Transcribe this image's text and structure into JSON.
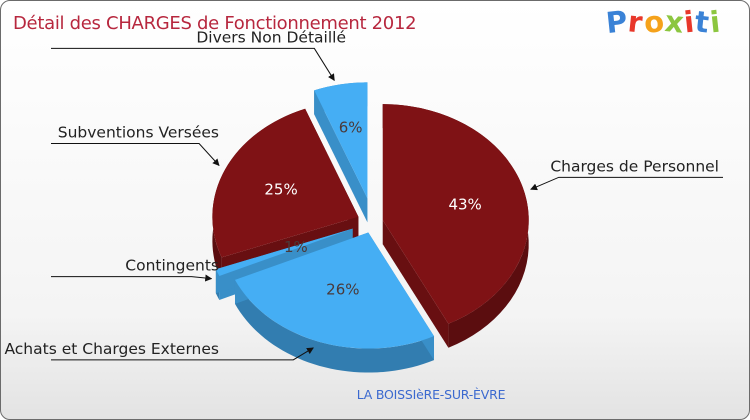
{
  "title": "Détail des CHARGES de Fonctionnement 2012",
  "logo": {
    "letters": [
      "P",
      "r",
      "o",
      "x",
      "i",
      "t",
      "i"
    ],
    "colors": [
      "#3a82d6",
      "#e8372a",
      "#f5a21b",
      "#8cc63f",
      "#e8372a",
      "#3a82d6",
      "#8cc63f"
    ]
  },
  "commune": "LA BOISSIèRE-SUR-ÈVRE",
  "colors": {
    "dark": "#7f1215",
    "light": "#45aef4"
  },
  "chart_data": {
    "type": "pie",
    "title": "Détail des CHARGES de Fonctionnement 2012",
    "slices": [
      {
        "label": "Charges de Personnel",
        "value": 43,
        "pct_text": "43%",
        "color": "#7f1215"
      },
      {
        "label": "Achats et Charges Externes",
        "value": 26,
        "pct_text": "26%",
        "color": "#45aef4"
      },
      {
        "label": "Contingents",
        "value": 1,
        "pct_text": "1%",
        "color": "#45aef4"
      },
      {
        "label": "Subventions Versées",
        "value": 25,
        "pct_text": "25%",
        "color": "#7f1215"
      },
      {
        "label": "Divers Non Détaillé",
        "value": 6,
        "pct_text": "6%",
        "color": "#45aef4"
      }
    ]
  }
}
